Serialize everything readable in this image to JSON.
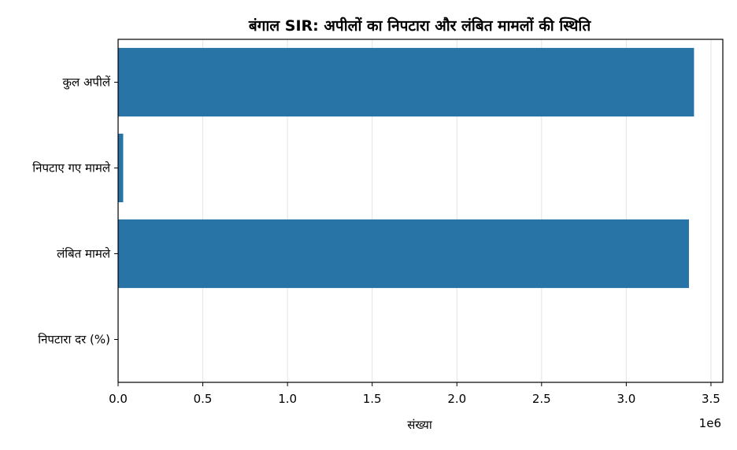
{
  "chart_data": {
    "type": "bar",
    "orientation": "horizontal",
    "title": "बंगाल SIR: अपीलों का निपटारा और लंबित मामलों की स्थिति",
    "xlabel": "संख्या",
    "ylabel": "",
    "x_offset_label": "1e6",
    "categories": [
      "कुल अपीलें",
      "निपटाए गए मामले",
      "लंबित मामले",
      "निपटारा दर (%)"
    ],
    "values": [
      3400000,
      30000,
      3370000,
      0.9
    ],
    "xlim": [
      0,
      3570000
    ],
    "xticks": [
      0,
      500000,
      1000000,
      1500000,
      2000000,
      2500000,
      3000000,
      3500000
    ],
    "xtick_labels": [
      "0.0",
      "0.5",
      "1.0",
      "1.5",
      "2.0",
      "2.5",
      "3.0",
      "3.5"
    ],
    "grid": "vertical",
    "bar_color": "#2874a6"
  }
}
